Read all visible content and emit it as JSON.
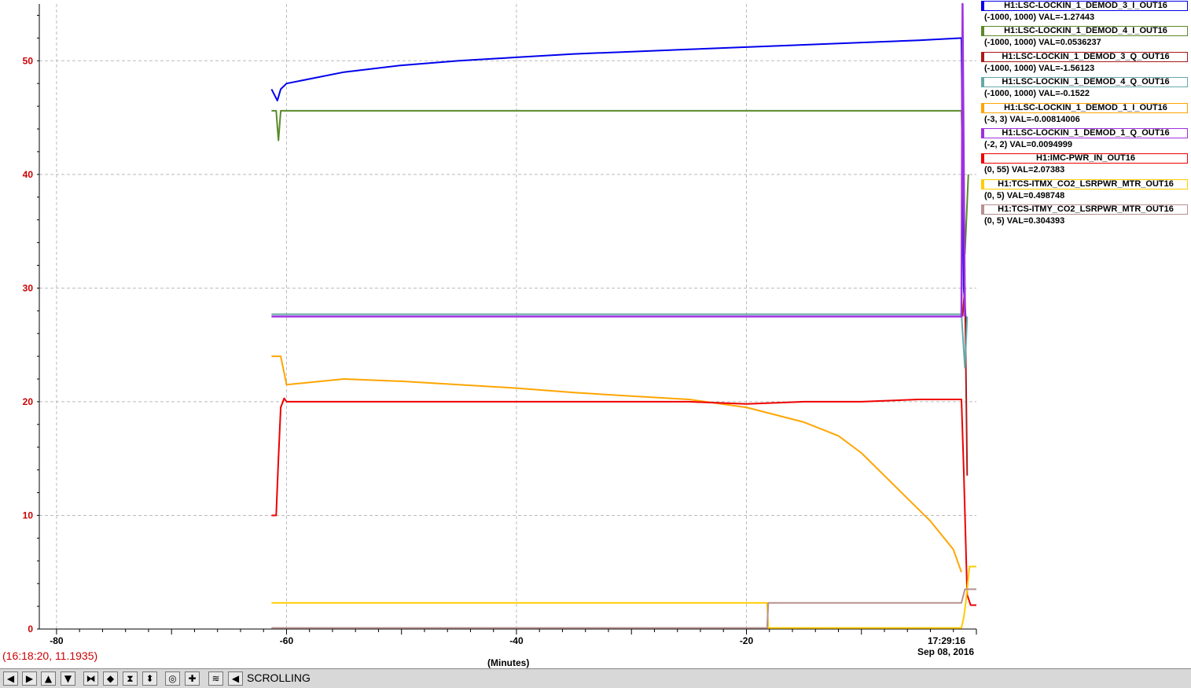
{
  "chart_data": {
    "type": "line",
    "xlabel": "(Minutes)",
    "x_ticks": [
      -80,
      -60,
      -40,
      -20
    ],
    "y_ticks": [
      0,
      10,
      20,
      30,
      40,
      50
    ],
    "xlim": [
      -81.5,
      0
    ],
    "ylim": [
      0,
      55
    ],
    "grid": true,
    "series": [
      {
        "name": "H1:LSC-LOCKIN_1_DEMOD_3_I_OUT16",
        "color": "#0000ee",
        "x": [
          -61.3,
          -60.8,
          -60.5,
          -60,
          -55,
          -50,
          -45,
          -40,
          -35,
          -30,
          -25,
          -20,
          -15,
          -10,
          -5,
          -1.3,
          -1.1,
          -0.9
        ],
        "y": [
          47.5,
          46.5,
          47.5,
          48.0,
          49.0,
          49.6,
          50.0,
          50.3,
          50.6,
          50.8,
          51.0,
          51.2,
          51.4,
          51.6,
          51.8,
          52.0,
          30.0,
          27.0
        ]
      },
      {
        "name": "H1:LSC-LOCKIN_1_DEMOD_4_I_OUT16",
        "color": "#5a8a2a",
        "x": [
          -61.3,
          -60.9,
          -60.7,
          -60.5,
          -60.3,
          -55,
          -40,
          -20,
          -5,
          -1.3,
          -1.0,
          -0.7
        ],
        "y": [
          45.6,
          45.6,
          43.0,
          45.6,
          45.6,
          45.6,
          45.6,
          45.6,
          45.6,
          45.6,
          33.0,
          40.0
        ]
      },
      {
        "name": "H1:LSC-LOCKIN_1_DEMOD_3_Q_OUT16",
        "color": "#aa1a1a",
        "x": [
          -1.2,
          -1.0,
          -0.8
        ],
        "y": [
          27.5,
          30.0,
          13.5
        ]
      },
      {
        "name": "H1:LSC-LOCKIN_1_DEMOD_4_Q_OUT16",
        "color": "#66a8a8",
        "x": [
          -61.3,
          -40,
          -20,
          -1.3,
          -1.0,
          -0.8
        ],
        "y": [
          27.7,
          27.7,
          27.7,
          27.7,
          23.0,
          27.5
        ]
      },
      {
        "name": "H1:LSC-LOCKIN_1_DEMOD_1_I_OUT16",
        "color": "#ffa500",
        "x": [
          -61.3,
          -60.5,
          -60,
          -55,
          -50,
          -45,
          -40,
          -35,
          -30,
          -25,
          -20,
          -15,
          -12,
          -10,
          -8,
          -6,
          -4,
          -2,
          -1.3
        ],
        "y": [
          24.0,
          24.0,
          21.5,
          22.0,
          21.8,
          21.5,
          21.2,
          20.8,
          20.5,
          20.2,
          19.5,
          18.2,
          17.0,
          15.5,
          13.5,
          11.5,
          9.5,
          7.0,
          5.0
        ]
      },
      {
        "name": "H1:LSC-LOCKIN_1_DEMOD_1_Q_OUT16",
        "color": "#a030e0",
        "x": [
          -61.3,
          -55,
          -50,
          -45,
          -40,
          -35,
          -30,
          -25,
          -20,
          -15,
          -10,
          -5,
          -1.3,
          -1.2,
          -1.0
        ],
        "y": [
          27.5,
          27.5,
          27.5,
          27.5,
          27.5,
          27.5,
          27.5,
          27.5,
          27.5,
          27.5,
          27.5,
          27.5,
          27.5,
          55.0,
          27.5
        ]
      },
      {
        "name": "H1:IMC-PWR_IN_OUT16",
        "color": "#ee0000",
        "x": [
          -61.3,
          -60.9,
          -60.7,
          -60.5,
          -60.2,
          -60,
          -55,
          -50,
          -45,
          -40,
          -35,
          -30,
          -25,
          -20,
          -15,
          -10,
          -5,
          -1.3,
          -1.1,
          -0.8,
          -0.5,
          0
        ],
        "y": [
          10.0,
          10.0,
          15.0,
          19.5,
          20.3,
          20.0,
          20.0,
          20.0,
          20.0,
          20.0,
          20.0,
          20.0,
          20.0,
          19.8,
          20.0,
          20.0,
          20.2,
          20.2,
          14.0,
          3.0,
          2.1,
          2.1
        ]
      },
      {
        "name": "H1:TCS-ITMX_CO2_LSRPWR_MTR_OUT16",
        "color": "#ffcc00",
        "x": [
          -61.3,
          -40,
          -20,
          -18.2,
          -18.1,
          -1.3,
          -1.1,
          -0.9,
          -0.6,
          0
        ],
        "y": [
          2.3,
          2.3,
          2.3,
          2.3,
          0.1,
          0.1,
          1.0,
          2.5,
          5.5,
          5.5
        ]
      },
      {
        "name": "H1:TCS-ITMY_CO2_LSRPWR_MTR_OUT16",
        "color": "#b89090",
        "x": [
          -61.3,
          -40,
          -20,
          -18.2,
          -18.1,
          -10,
          -1.3,
          -1.0,
          -0.6,
          0
        ],
        "y": [
          0.1,
          0.1,
          0.1,
          0.1,
          2.3,
          2.3,
          2.3,
          3.5,
          3.5,
          3.5
        ]
      }
    ]
  },
  "legend": [
    {
      "name": "H1:LSC-LOCKIN_1_DEMOD_3_I_OUT16",
      "range_val": "(-1000, 1000) VAL=-1.27443",
      "color": "#0000ee"
    },
    {
      "name": "H1:LSC-LOCKIN_1_DEMOD_4_I_OUT16",
      "range_val": "(-1000, 1000) VAL=0.0536237",
      "color": "#5a8a2a"
    },
    {
      "name": "H1:LSC-LOCKIN_1_DEMOD_3_Q_OUT16",
      "range_val": "(-1000, 1000) VAL=-1.56123",
      "color": "#aa1a1a"
    },
    {
      "name": "H1:LSC-LOCKIN_1_DEMOD_4_Q_OUT16",
      "range_val": "(-1000, 1000) VAL=-0.1522",
      "color": "#66a8a8"
    },
    {
      "name": "H1:LSC-LOCKIN_1_DEMOD_1_I_OUT16",
      "range_val": "(-3, 3) VAL=-0.00814006",
      "color": "#ffa500"
    },
    {
      "name": "H1:LSC-LOCKIN_1_DEMOD_1_Q_OUT16",
      "range_val": "(-2, 2) VAL=0.0094999",
      "color": "#a030e0"
    },
    {
      "name": "H1:IMC-PWR_IN_OUT16",
      "range_val": "(0, 55) VAL=2.07383",
      "color": "#ee0000"
    },
    {
      "name": "H1:TCS-ITMX_CO2_LSRPWR_MTR_OUT16",
      "range_val": "(0, 5) VAL=0.498748",
      "color": "#ffcc00"
    },
    {
      "name": "H1:TCS-ITMY_CO2_LSRPWR_MTR_OUT16",
      "range_val": "(0, 5) VAL=0.304393",
      "color": "#b89090"
    }
  ],
  "cursor_readout": "(16:18:20, 11.1935)",
  "now_time": "17:29:16",
  "now_date": "Sep 08, 2016",
  "toolbar": {
    "mode_label": "SCROLLING",
    "buttons": [
      {
        "icon": "pan-left-icon",
        "glyph": "◀"
      },
      {
        "icon": "pan-right-icon",
        "glyph": "▶"
      },
      {
        "icon": "pan-up-icon",
        "glyph": "▲"
      },
      {
        "icon": "pan-down-icon",
        "glyph": "▼"
      },
      {
        "icon": "zoom-in-x-icon",
        "glyph": "⧓"
      },
      {
        "icon": "zoom-out-x-icon",
        "glyph": "◆"
      },
      {
        "icon": "zoom-in-y-icon",
        "glyph": "⧗"
      },
      {
        "icon": "zoom-out-y-icon",
        "glyph": "⬍"
      },
      {
        "icon": "reset-icon",
        "glyph": "◎"
      },
      {
        "icon": "crosshair-icon",
        "glyph": "✚"
      },
      {
        "icon": "autoscale-icon",
        "glyph": "≋"
      },
      {
        "icon": "scroll-mode-icon",
        "glyph": "◀"
      }
    ]
  }
}
